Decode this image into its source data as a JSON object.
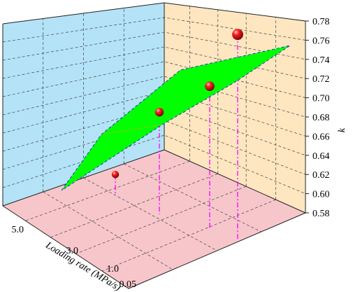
{
  "chart_data": {
    "type": "scatter",
    "title": "",
    "zlabel": "k",
    "ylabel": "Loading rate (MPa/s)",
    "xlabel": "",
    "zlim": [
      0.58,
      0.78
    ],
    "z_ticks": [
      "0.58",
      "0.60",
      "0.62",
      "0.64",
      "0.66",
      "0.68",
      "0.70",
      "0.72",
      "0.74",
      "0.76",
      "0.78"
    ],
    "y_ticks": [
      "5.0",
      "3.0",
      "1.0",
      "0.05"
    ],
    "points": [
      {
        "loading_rate": "5.0",
        "k": 0.62
      },
      {
        "loading_rate": "3.0",
        "k": 0.685
      },
      {
        "loading_rate": "1.0",
        "k": 0.712
      },
      {
        "loading_rate": "0.05",
        "k": 0.766
      }
    ],
    "grid": true,
    "colors": {
      "left_wall": "#b4e3f7",
      "back_wall": "#fde6c0",
      "floor": "#f7c6cb",
      "surface": "#00ff00",
      "surface_edge": "#3333cc",
      "drop_lines": "#ff00ff",
      "points": "#e01010"
    }
  }
}
